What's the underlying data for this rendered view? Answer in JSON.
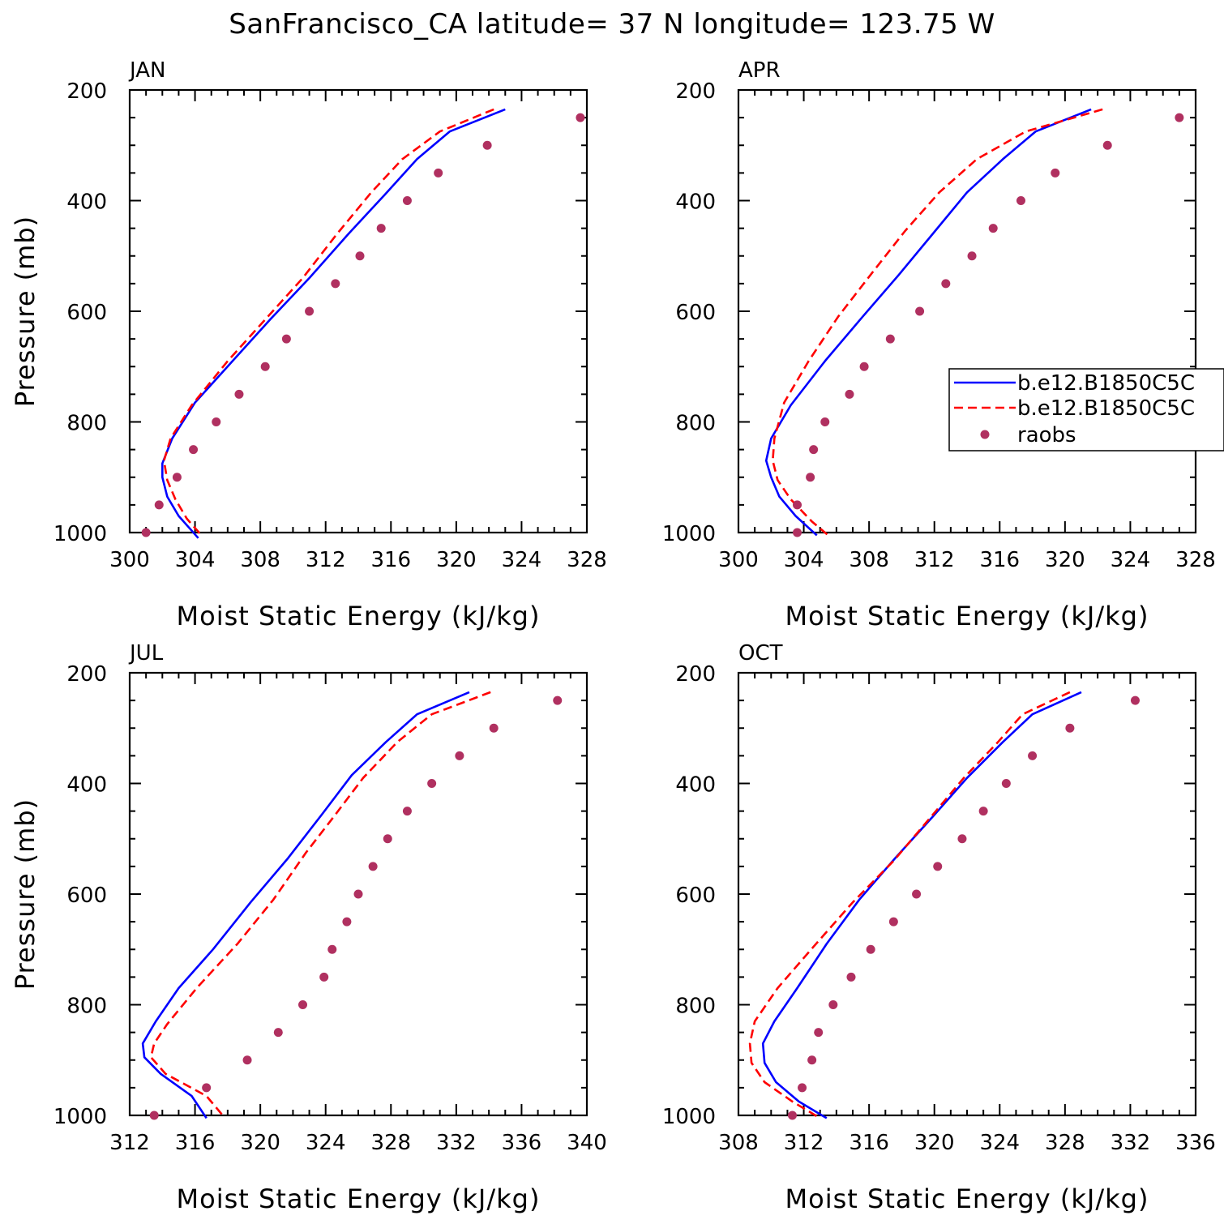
{
  "title": "SanFrancisco_CA  latitude= 37 N longitude= 123.75 W",
  "colors": {
    "model1": "#0000ff",
    "model2": "#ff0000",
    "raobs": "#b03060"
  },
  "legend": {
    "entries": [
      "b.e12.B1850C5C",
      "b.e12.B1850C5C",
      "raobs"
    ]
  },
  "chart_data": [
    {
      "type": "line",
      "panel_label": "JAN",
      "xlabel": "Moist Static Energy (kJ/kg)",
      "ylabel": "Pressure (mb)",
      "xlim": [
        300,
        328
      ],
      "ylim": [
        1000,
        200
      ],
      "xticks": [
        300,
        304,
        308,
        312,
        316,
        320,
        324,
        328
      ],
      "yticks": [
        200,
        400,
        600,
        800,
        1000
      ],
      "series": [
        {
          "name": "b.e12.B1850C5C",
          "style": "solid",
          "x": [
            323.0,
            319.6,
            317.6,
            315.6,
            313.4,
            311.0,
            308.6,
            306.3,
            304.0,
            302.6,
            302.0,
            302.0,
            302.3,
            303.0,
            304.2
          ],
          "y": [
            235,
            275,
            325,
            390,
            460,
            540,
            615,
            690,
            765,
            830,
            875,
            900,
            935,
            970,
            1010
          ]
        },
        {
          "name": "b.e12.B1850C5C",
          "style": "dashed",
          "x": [
            322.3,
            319.0,
            316.7,
            314.8,
            312.7,
            310.6,
            308.3,
            306.0,
            303.8,
            302.5,
            302.1,
            302.3,
            302.8,
            303.5,
            304.4
          ],
          "y": [
            235,
            275,
            325,
            385,
            460,
            540,
            615,
            690,
            770,
            830,
            870,
            905,
            940,
            975,
            1005
          ]
        },
        {
          "name": "raobs",
          "style": "markers",
          "x": [
            327.6,
            321.9,
            318.9,
            317.0,
            315.4,
            314.1,
            312.6,
            311.0,
            309.6,
            308.3,
            306.7,
            305.3,
            303.9,
            302.9,
            301.8,
            301.0
          ],
          "y": [
            250,
            300,
            350,
            400,
            450,
            500,
            550,
            600,
            650,
            700,
            750,
            800,
            850,
            900,
            950,
            1000
          ]
        }
      ]
    },
    {
      "type": "line",
      "panel_label": "APR",
      "xlabel": "Moist Static Energy (kJ/kg)",
      "ylabel": "",
      "xlim": [
        300,
        328
      ],
      "ylim": [
        1000,
        200
      ],
      "xticks": [
        300,
        304,
        308,
        312,
        316,
        320,
        324,
        328
      ],
      "yticks": [
        200,
        400,
        600,
        800,
        1000
      ],
      "series": [
        {
          "name": "b.e12.B1850C5C",
          "style": "solid",
          "x": [
            321.6,
            318.2,
            316.2,
            314.0,
            311.9,
            309.8,
            307.6,
            305.3,
            303.2,
            302.0,
            301.7,
            302.0,
            302.5,
            303.5,
            304.8
          ],
          "y": [
            235,
            275,
            325,
            385,
            460,
            535,
            610,
            690,
            770,
            830,
            870,
            900,
            935,
            970,
            1005
          ]
        },
        {
          "name": "b.e12.B1850C5C",
          "style": "dashed",
          "x": [
            322.3,
            317.6,
            314.6,
            312.3,
            310.2,
            308.2,
            306.1,
            304.3,
            302.8,
            302.2,
            302.1,
            302.4,
            303.2,
            304.5,
            305.5
          ],
          "y": [
            235,
            275,
            325,
            385,
            455,
            530,
            610,
            690,
            765,
            830,
            870,
            905,
            940,
            980,
            1005
          ]
        },
        {
          "name": "raobs",
          "style": "markers",
          "x": [
            327.0,
            322.6,
            319.4,
            317.3,
            315.6,
            314.3,
            312.7,
            311.1,
            309.3,
            307.7,
            306.8,
            305.3,
            304.6,
            304.4,
            303.6,
            303.6
          ],
          "y": [
            250,
            300,
            350,
            400,
            450,
            500,
            550,
            600,
            650,
            700,
            750,
            800,
            850,
            900,
            950,
            1000
          ]
        }
      ]
    },
    {
      "type": "line",
      "panel_label": "JUL",
      "xlabel": "Moist Static Energy (kJ/kg)",
      "ylabel": "Pressure (mb)",
      "xlim": [
        312,
        340
      ],
      "ylim": [
        1000,
        200
      ],
      "xticks": [
        312,
        316,
        320,
        324,
        328,
        332,
        336,
        340
      ],
      "yticks": [
        200,
        400,
        600,
        800,
        1000
      ],
      "series": [
        {
          "name": "b.e12.B1850C5C",
          "style": "solid",
          "x": [
            332.8,
            329.6,
            327.7,
            325.6,
            323.8,
            321.7,
            319.4,
            317.1,
            315.0,
            313.6,
            312.8,
            312.9,
            313.9,
            315.8,
            316.7
          ],
          "y": [
            235,
            275,
            325,
            385,
            455,
            535,
            615,
            700,
            770,
            830,
            870,
            895,
            925,
            965,
            1005
          ]
        },
        {
          "name": "b.e12.B1850C5C",
          "style": "dashed",
          "x": [
            334.1,
            330.5,
            328.4,
            326.3,
            324.5,
            322.8,
            320.8,
            318.6,
            316.1,
            314.3,
            313.5,
            313.3,
            314.2,
            316.7,
            317.7
          ],
          "y": [
            235,
            275,
            325,
            390,
            460,
            525,
            610,
            690,
            770,
            835,
            870,
            895,
            925,
            965,
            1000
          ]
        },
        {
          "name": "raobs",
          "style": "markers",
          "x": [
            338.2,
            334.3,
            332.2,
            330.5,
            329.0,
            327.8,
            326.9,
            326.0,
            325.3,
            324.4,
            323.9,
            322.6,
            321.1,
            319.2,
            316.7,
            313.5
          ],
          "y": [
            250,
            300,
            350,
            400,
            450,
            500,
            550,
            600,
            650,
            700,
            750,
            800,
            850,
            900,
            950,
            1000
          ]
        }
      ]
    },
    {
      "type": "line",
      "panel_label": "OCT",
      "xlabel": "Moist Static Energy (kJ/kg)",
      "ylabel": "",
      "xlim": [
        308,
        336
      ],
      "ylim": [
        1000,
        200
      ],
      "xticks": [
        308,
        312,
        316,
        320,
        324,
        328,
        332,
        336
      ],
      "yticks": [
        200,
        400,
        600,
        800,
        1000
      ],
      "series": [
        {
          "name": "b.e12.B1850C5C",
          "style": "solid",
          "x": [
            329.0,
            326.0,
            324.2,
            322.0,
            319.9,
            317.6,
            315.4,
            313.4,
            311.6,
            310.2,
            309.5,
            309.6,
            310.3,
            311.7,
            313.4
          ],
          "y": [
            235,
            275,
            325,
            390,
            460,
            535,
            610,
            690,
            770,
            830,
            870,
            905,
            940,
            975,
            1005
          ]
        },
        {
          "name": "b.e12.B1850C5C",
          "style": "dashed",
          "x": [
            328.3,
            325.4,
            323.9,
            321.8,
            319.8,
            317.5,
            315.0,
            312.6,
            310.4,
            309.0,
            308.7,
            308.8,
            309.6,
            311.3,
            313.0
          ],
          "y": [
            235,
            275,
            325,
            390,
            460,
            540,
            615,
            695,
            770,
            830,
            870,
            905,
            940,
            975,
            1005
          ]
        },
        {
          "name": "raobs",
          "style": "markers",
          "x": [
            332.3,
            328.3,
            326.0,
            324.4,
            323.0,
            321.7,
            320.2,
            318.9,
            317.5,
            316.1,
            314.9,
            313.8,
            312.9,
            312.5,
            311.9,
            311.3
          ],
          "y": [
            250,
            300,
            350,
            400,
            450,
            500,
            550,
            600,
            650,
            700,
            750,
            800,
            850,
            900,
            950,
            1000
          ]
        }
      ]
    }
  ]
}
